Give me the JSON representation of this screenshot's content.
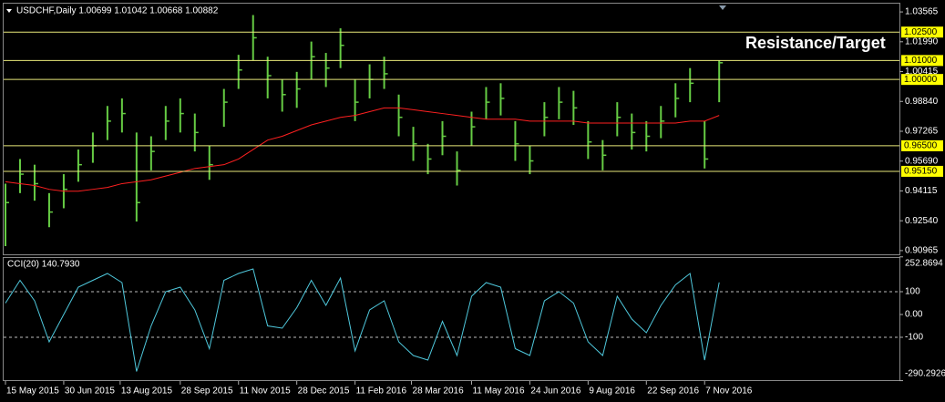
{
  "chart_data": {
    "type": "ohlc",
    "title": "USDCHF,Daily  1.00699 1.01042 1.00668 1.00882",
    "annotation": "Resistance/Target",
    "color": "#66cc44",
    "xlim": [
      -1,
      491
    ],
    "xticks": [
      {
        "value": 0,
        "label": "15 May 2015"
      },
      {
        "value": 32,
        "label": "30 Jun 2015"
      },
      {
        "value": 63,
        "label": "13 Aug 2015"
      },
      {
        "value": 96,
        "label": "28 Sep 2015"
      },
      {
        "value": 128,
        "label": "11 Nov 2015"
      },
      {
        "value": 160,
        "label": "28 Dec 2015"
      },
      {
        "value": 192,
        "label": "11 Feb 2016"
      },
      {
        "value": 223,
        "label": "28 Mar 2016"
      },
      {
        "value": 256,
        "label": "11 May 2016"
      },
      {
        "value": 288,
        "label": "24 Jun 2016"
      },
      {
        "value": 320,
        "label": "9 Aug 2016"
      },
      {
        "value": 352,
        "label": "22 Sep 2016"
      },
      {
        "value": 384,
        "label": "7 Nov 2016"
      }
    ],
    "ylim": [
      0.9072,
      1.0405
    ],
    "yticks": [
      1.03565,
      {
        "value": 1.0199,
        "label": "1.01990"
      },
      1.00415,
      {
        "value": 0.9884,
        "label": "0.98840"
      },
      0.97265,
      {
        "value": 0.9569,
        "label": "0.95690"
      },
      0.94115,
      {
        "value": 0.9254,
        "label": "0.92540"
      },
      0.90965
    ],
    "levels": [
      {
        "value": 1.025,
        "label": "1.02500"
      },
      {
        "value": 1.01,
        "label": "1.01000"
      },
      {
        "value": 1.0,
        "label": "1.00000"
      },
      {
        "value": 0.965,
        "label": "0.96500"
      },
      {
        "value": 0.9515,
        "label": "0.95150"
      }
    ],
    "level_color": "#e8e87a",
    "x": [
      0,
      8,
      16,
      24,
      32,
      40,
      48,
      56,
      64,
      72,
      80,
      88,
      96,
      104,
      112,
      120,
      128,
      136,
      144,
      152,
      160,
      168,
      176,
      184,
      192,
      200,
      208,
      216,
      224,
      232,
      240,
      248,
      256,
      264,
      272,
      280,
      288,
      296,
      304,
      312,
      320,
      328,
      336,
      344,
      352,
      360,
      368,
      376,
      384,
      392
    ],
    "high": [
      0.945,
      0.958,
      0.955,
      0.94,
      0.95,
      0.963,
      0.972,
      0.986,
      0.99,
      0.972,
      0.97,
      0.986,
      0.99,
      0.982,
      0.965,
      0.995,
      1.013,
      1.034,
      1.012,
      1.0,
      1.004,
      1.02,
      1.014,
      1.027,
      1.0,
      1.008,
      1.012,
      0.992,
      0.975,
      0.966,
      0.978,
      0.962,
      0.983,
      0.996,
      0.998,
      0.978,
      0.965,
      0.988,
      0.996,
      0.994,
      0.978,
      0.968,
      0.988,
      0.982,
      0.978,
      0.986,
      0.998,
      1.006,
      0.978,
      1.01
    ],
    "low": [
      0.912,
      0.94,
      0.936,
      0.922,
      0.932,
      0.946,
      0.956,
      0.968,
      0.972,
      0.925,
      0.952,
      0.968,
      0.972,
      0.962,
      0.947,
      0.975,
      0.995,
      1.01,
      0.99,
      0.983,
      0.985,
      1.0,
      0.996,
      1.006,
      0.978,
      0.99,
      0.995,
      0.97,
      0.957,
      0.95,
      0.96,
      0.944,
      0.965,
      0.979,
      0.981,
      0.957,
      0.95,
      0.97,
      0.979,
      0.976,
      0.958,
      0.952,
      0.97,
      0.963,
      0.962,
      0.969,
      0.98,
      0.988,
      0.953,
      0.988
    ],
    "close": [
      0.935,
      0.95,
      0.945,
      0.93,
      0.942,
      0.955,
      0.965,
      0.978,
      0.982,
      0.935,
      0.962,
      0.978,
      0.982,
      0.972,
      0.955,
      0.988,
      1.005,
      1.022,
      1.002,
      0.992,
      0.995,
      1.012,
      1.006,
      1.018,
      0.988,
      1.0,
      1.003,
      0.98,
      0.966,
      0.958,
      0.97,
      0.952,
      0.975,
      0.988,
      0.99,
      0.966,
      0.957,
      0.98,
      0.988,
      0.985,
      0.967,
      0.96,
      0.98,
      0.972,
      0.97,
      0.978,
      0.99,
      0.998,
      0.958,
      1.00882
    ],
    "ma": {
      "color": "#ff2020",
      "values": [
        0.946,
        0.945,
        0.944,
        0.942,
        0.941,
        0.941,
        0.942,
        0.943,
        0.945,
        0.946,
        0.947,
        0.949,
        0.951,
        0.953,
        0.954,
        0.955,
        0.958,
        0.963,
        0.968,
        0.97,
        0.973,
        0.976,
        0.978,
        0.98,
        0.981,
        0.983,
        0.985,
        0.985,
        0.984,
        0.983,
        0.982,
        0.981,
        0.98,
        0.979,
        0.979,
        0.979,
        0.978,
        0.978,
        0.978,
        0.978,
        0.977,
        0.977,
        0.977,
        0.977,
        0.977,
        0.977,
        0.977,
        0.978,
        0.978,
        0.981
      ]
    },
    "indicator": {
      "type": "line",
      "title": "CCI(20) 140.7930",
      "color": "#4fc8dc",
      "ylim": [
        -292,
        248
      ],
      "yticks": [
        252.8694,
        100,
        {
          "value": 0,
          "label": "0.00"
        },
        -100,
        -290.2926
      ],
      "dashed_levels": [
        100,
        -100
      ],
      "values": [
        50,
        150,
        60,
        -120,
        0,
        120,
        150,
        180,
        140,
        -250,
        -50,
        100,
        120,
        20,
        -150,
        150,
        180,
        200,
        -50,
        -60,
        30,
        150,
        40,
        160,
        -160,
        20,
        60,
        -120,
        -180,
        -200,
        -30,
        -180,
        80,
        140,
        120,
        -150,
        -180,
        60,
        100,
        50,
        -120,
        -180,
        80,
        -20,
        -80,
        40,
        130,
        180,
        -200,
        140.793
      ]
    }
  }
}
